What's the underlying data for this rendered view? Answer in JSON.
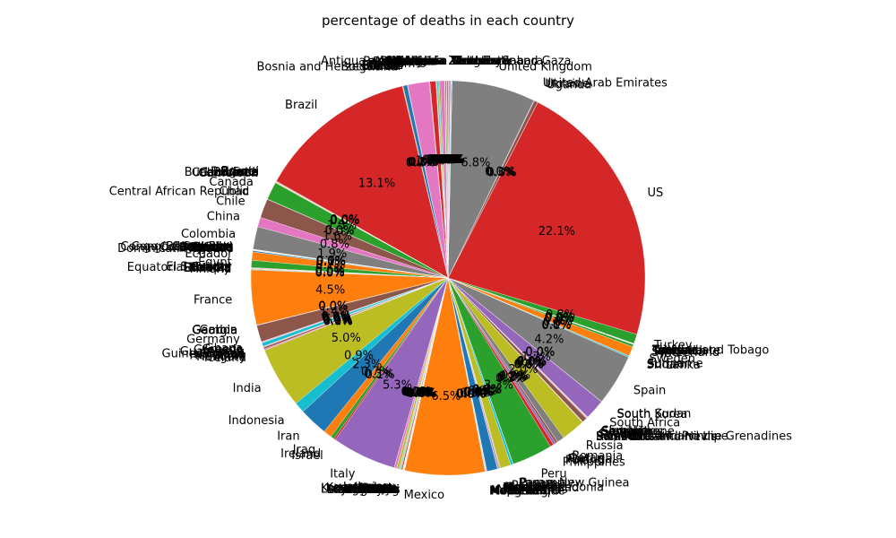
{
  "chart_data": {
    "type": "pie",
    "title": "percentage of deaths in each country",
    "start": "top, counterclockwise",
    "slices": [
      {
        "label": "Afghanistan",
        "value": 0.1
      },
      {
        "label": "Albania",
        "value": 0.05
      },
      {
        "label": "Algeria",
        "value": 0.1
      },
      {
        "label": "Andorra",
        "value": 0.01
      },
      {
        "label": "Angola",
        "value": 0.01
      },
      {
        "label": "Antigua and Barbuda",
        "value": 0.01
      },
      {
        "label": "Argentina",
        "value": 0.35
      },
      {
        "label": "Armenia",
        "value": 0.1
      },
      {
        "label": "Australia",
        "value": 0.1
      },
      {
        "label": "Austria",
        "value": 0.1
      },
      {
        "label": "Azerbaijan",
        "value": 0.05
      },
      {
        "label": "Bahamas",
        "value": 0.01
      },
      {
        "label": "Bahrain",
        "value": 0.02
      },
      {
        "label": "Bangladesh",
        "value": 0.5
      },
      {
        "label": "Barbados",
        "value": 0.01
      },
      {
        "label": "Belarus",
        "value": 0.05
      },
      {
        "label": "Belgium",
        "value": 1.8
      },
      {
        "label": "Belize",
        "value": 0.01
      },
      {
        "label": "Benin",
        "value": 0.01
      },
      {
        "label": "Bhutan",
        "value": 0.01
      },
      {
        "label": "Bolivia",
        "value": 0.35
      },
      {
        "label": "Bosnia and Herzegovina",
        "value": 0.06
      },
      {
        "label": "Botswana",
        "value": 0.01
      },
      {
        "label": "Brazil",
        "value": 13.4
      },
      {
        "label": "Brunei",
        "value": 0.01
      },
      {
        "label": "Bulgaria",
        "value": 0.05
      },
      {
        "label": "Burkina Faso",
        "value": 0.01
      },
      {
        "label": "Burma",
        "value": 0.01
      },
      {
        "label": "Burundi",
        "value": 0.01
      },
      {
        "label": "Cabo Verde",
        "value": 0.01
      },
      {
        "label": "Cambodia",
        "value": 0.01
      },
      {
        "label": "Cameroon",
        "value": 0.05
      },
      {
        "label": "Canada",
        "value": 1.5
      },
      {
        "label": "Central African Republic",
        "value": 0.01
      },
      {
        "label": "Chad",
        "value": 0.01
      },
      {
        "label": "Chile",
        "value": 1.6
      },
      {
        "label": "China",
        "value": 0.8
      },
      {
        "label": "Colombia",
        "value": 1.9
      },
      {
        "label": "Comoros",
        "value": 0.01
      },
      {
        "label": "Congo (Brazzaville)",
        "value": 0.01
      },
      {
        "label": "Congo (Kinshasa)",
        "value": 0.01
      },
      {
        "label": "Costa Rica",
        "value": 0.01
      },
      {
        "label": "Cote d'Ivoire",
        "value": 0.01
      },
      {
        "label": "Croatia",
        "value": 0.01
      },
      {
        "label": "Cuba",
        "value": 0.01
      },
      {
        "label": "Cyprus",
        "value": 0.01
      },
      {
        "label": "Czechia",
        "value": 0.01
      },
      {
        "label": "Denmark",
        "value": 0.01
      },
      {
        "label": "Djibouti",
        "value": 0.01
      },
      {
        "label": "Dominica",
        "value": 0.01
      },
      {
        "label": "Dominican Republic",
        "value": 0.1
      },
      {
        "label": "Ecuador",
        "value": 0.7
      },
      {
        "label": "Egypt",
        "value": 0.6
      },
      {
        "label": "El Salvador",
        "value": 0.05
      },
      {
        "label": "Equatorial Guinea",
        "value": 0.01
      },
      {
        "label": "Eritrea",
        "value": 0.01
      },
      {
        "label": "Estonia",
        "value": 0.01
      },
      {
        "label": "Eswatini",
        "value": 0.01
      },
      {
        "label": "Ethiopia",
        "value": 0.05
      },
      {
        "label": "Fiji",
        "value": 0.01
      },
      {
        "label": "Finland",
        "value": 0.05
      },
      {
        "label": "France",
        "value": 4.6
      },
      {
        "label": "Gabon",
        "value": 0.01
      },
      {
        "label": "Gambia",
        "value": 0.01
      },
      {
        "label": "Georgia",
        "value": 0.01
      },
      {
        "label": "Germany",
        "value": 1.4
      },
      {
        "label": "Ghana",
        "value": 0.05
      },
      {
        "label": "Greece",
        "value": 0.05
      },
      {
        "label": "Grenada",
        "value": 0.01
      },
      {
        "label": "Guatemala",
        "value": 0.3
      },
      {
        "label": "Guinea",
        "value": 0.01
      },
      {
        "label": "Guinea-Bissau",
        "value": 0.01
      },
      {
        "label": "Guyana",
        "value": 0.01
      },
      {
        "label": "Haiti",
        "value": 0.05
      },
      {
        "label": "Holy See",
        "value": 0.01
      },
      {
        "label": "Honduras",
        "value": 0.15
      },
      {
        "label": "Hungary",
        "value": 0.1
      },
      {
        "label": "Iceland",
        "value": 0.01
      },
      {
        "label": "India",
        "value": 5.1
      },
      {
        "label": "Indonesia",
        "value": 0.9
      },
      {
        "label": "Iran",
        "value": 2.4
      },
      {
        "label": "Iraq",
        "value": 0.7
      },
      {
        "label": "Ireland",
        "value": 0.3
      },
      {
        "label": "Israel",
        "value": 0.15
      },
      {
        "label": "Italy",
        "value": 5.4
      },
      {
        "label": "Jamaica",
        "value": 0.01
      },
      {
        "label": "Japan",
        "value": 0.2
      },
      {
        "label": "Jordan",
        "value": 0.01
      },
      {
        "label": "Kazakhstan",
        "value": 0.2
      },
      {
        "label": "Kenya",
        "value": 0.05
      },
      {
        "label": "Korea, South",
        "value": 0.05
      },
      {
        "label": "Kosovo",
        "value": 0.05
      },
      {
        "label": "Kuwait",
        "value": 0.05
      },
      {
        "label": "Kyrgyzstan",
        "value": 0.1
      },
      {
        "label": "Laos",
        "value": 0.01
      },
      {
        "label": "Latvia",
        "value": 0.01
      },
      {
        "label": "Lebanon",
        "value": 0.01
      },
      {
        "label": "Lesotho",
        "value": 0.01
      },
      {
        "label": "Liberia",
        "value": 0.01
      },
      {
        "label": "Libya",
        "value": 0.01
      },
      {
        "label": "Liechtenstein",
        "value": 0.01
      },
      {
        "label": "Lithuania",
        "value": 0.01
      },
      {
        "label": "Luxembourg",
        "value": 0.01
      },
      {
        "label": "Madagascar",
        "value": 0.01
      },
      {
        "label": "Malawi",
        "value": 0.01
      },
      {
        "label": "Malaysia",
        "value": 0.01
      },
      {
        "label": "Maldives",
        "value": 0.01
      },
      {
        "label": "Mali",
        "value": 0.01
      },
      {
        "label": "Malta",
        "value": 0.01
      },
      {
        "label": "Mauritania",
        "value": 0.01
      },
      {
        "label": "Mauritius",
        "value": 0.01
      },
      {
        "label": "Mexico",
        "value": 6.7
      },
      {
        "label": "Moldova",
        "value": 0.05
      },
      {
        "label": "Monaco",
        "value": 0.01
      },
      {
        "label": "Mongolia",
        "value": 0.01
      },
      {
        "label": "Montenegro",
        "value": 0.01
      },
      {
        "label": "Morocco",
        "value": 0.05
      },
      {
        "label": "Mozambique",
        "value": 0.01
      },
      {
        "label": "Namibia",
        "value": 0.01
      },
      {
        "label": "Nepal",
        "value": 0.01
      },
      {
        "label": "Netherlands",
        "value": 0.9
      },
      {
        "label": "New Zealand",
        "value": 0.01
      },
      {
        "label": "Nicaragua",
        "value": 0.01
      },
      {
        "label": "Niger",
        "value": 0.01
      },
      {
        "label": "Nigeria",
        "value": 0.1
      },
      {
        "label": "North Macedonia",
        "value": 0.05
      },
      {
        "label": "Norway",
        "value": 0.01
      },
      {
        "label": "Oman",
        "value": 0.05
      },
      {
        "label": "Pakistan",
        "value": 0.9
      },
      {
        "label": "Panama",
        "value": 0.2
      },
      {
        "label": "Papua New Guinea",
        "value": 0.01
      },
      {
        "label": "Paraguay",
        "value": 0.01
      },
      {
        "label": "Peru",
        "value": 3.4
      },
      {
        "label": "Philippines",
        "value": 0.3
      },
      {
        "label": "Poland",
        "value": 0.2
      },
      {
        "label": "Portugal",
        "value": 0.2
      },
      {
        "label": "Qatar",
        "value": 0.01
      },
      {
        "label": "Romania",
        "value": 0.6
      },
      {
        "label": "Russia",
        "value": 2.0
      },
      {
        "label": "Rwanda",
        "value": 0.01
      },
      {
        "label": "Saint Kitts and Nevis",
        "value": 0.01
      },
      {
        "label": "Saint Lucia",
        "value": 0.01
      },
      {
        "label": "Saint Vincent and the Grenadines",
        "value": 0.01
      },
      {
        "label": "San Marino",
        "value": 0.01
      },
      {
        "label": "Sao Tome and Principe",
        "value": 0.01
      },
      {
        "label": "Saudi Arabia",
        "value": 0.4
      },
      {
        "label": "Senegal",
        "value": 0.05
      },
      {
        "label": "Serbia",
        "value": 0.05
      },
      {
        "label": "Seychelles",
        "value": 0.01
      },
      {
        "label": "Sierra Leone",
        "value": 0.01
      },
      {
        "label": "Singapore",
        "value": 0.01
      },
      {
        "label": "Slovakia",
        "value": 0.01
      },
      {
        "label": "Slovenia",
        "value": 0.01
      },
      {
        "label": "Somalia",
        "value": 0.01
      },
      {
        "label": "South Africa",
        "value": 1.7
      },
      {
        "label": "South Korea",
        "value": 0.01
      },
      {
        "label": "South Sudan",
        "value": 0.01
      },
      {
        "label": "Spain",
        "value": 4.3
      },
      {
        "label": "Sri Lanka",
        "value": 0.01
      },
      {
        "label": "Sudan",
        "value": 0.1
      },
      {
        "label": "Suriname",
        "value": 0.01
      },
      {
        "label": "Sweden",
        "value": 0.8
      },
      {
        "label": "Switzerland",
        "value": 0.2
      },
      {
        "label": "Syria",
        "value": 0.01
      },
      {
        "label": "Taiwan*",
        "value": 0.01
      },
      {
        "label": "Tajikistan",
        "value": 0.01
      },
      {
        "label": "Tanzania",
        "value": 0.01
      },
      {
        "label": "Thailand",
        "value": 0.01
      },
      {
        "label": "Timor-Leste",
        "value": 0.01
      },
      {
        "label": "Togo",
        "value": 0.01
      },
      {
        "label": "Trinidad and Tobago",
        "value": 0.01
      },
      {
        "label": "Tunisia",
        "value": 0.01
      },
      {
        "label": "Turkey",
        "value": 0.8
      },
      {
        "label": "US",
        "value": 22.6
      },
      {
        "label": "Uganda",
        "value": 0.01
      },
      {
        "label": "Ukraine",
        "value": 0.3
      },
      {
        "label": "United Arab Emirates",
        "value": 0.05
      },
      {
        "label": "United Kingdom",
        "value": 7.0
      },
      {
        "label": "Uruguay",
        "value": 0.01
      },
      {
        "label": "Uzbekistan",
        "value": 0.05
      },
      {
        "label": "Venezuela",
        "value": 0.05
      },
      {
        "label": "Vietnam",
        "value": 0.01
      },
      {
        "label": "West Bank and Gaza",
        "value": 0.01
      },
      {
        "label": "Western Sahara",
        "value": 0.01
      },
      {
        "label": "Yemen",
        "value": 0.1
      },
      {
        "label": "Zambia",
        "value": 0.05
      },
      {
        "label": "Zimbabwe",
        "value": 0.05
      }
    ],
    "colors": [
      "#1f77b4",
      "#ff7f0e",
      "#2ca02c",
      "#d62728",
      "#9467bd",
      "#8c564b",
      "#e377c2",
      "#7f7f7f",
      "#bcbd22",
      "#17becf"
    ]
  }
}
